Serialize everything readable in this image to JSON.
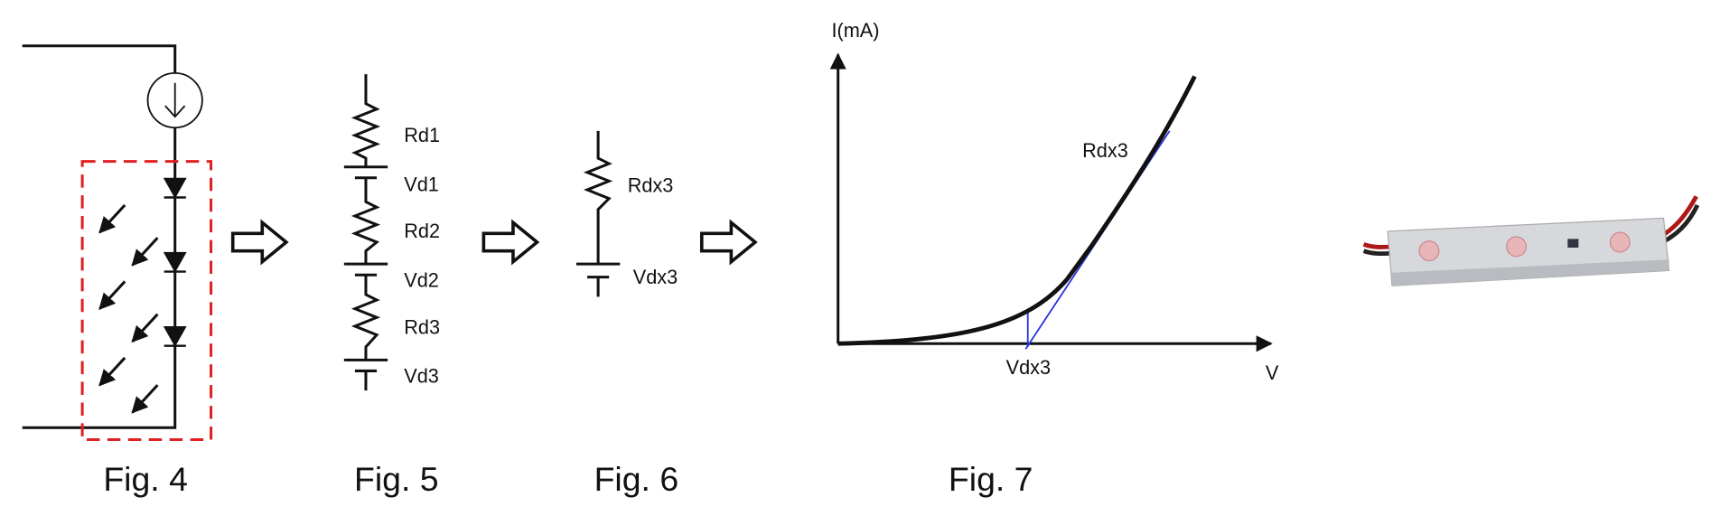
{
  "figures": [
    {
      "caption": "Fig. 4"
    },
    {
      "caption": "Fig. 5",
      "labels": [
        "Rd1",
        "Vd1",
        "Rd2",
        "Vd2",
        "Rd3",
        "Vd3"
      ]
    },
    {
      "caption": "Fig. 6",
      "labels": [
        "Rdx3",
        "Vdx3"
      ]
    },
    {
      "caption": "Fig. 7",
      "y_label": "I(mA)",
      "x_label": "V",
      "annotations": [
        "Rdx3",
        "Vdx3"
      ]
    }
  ]
}
